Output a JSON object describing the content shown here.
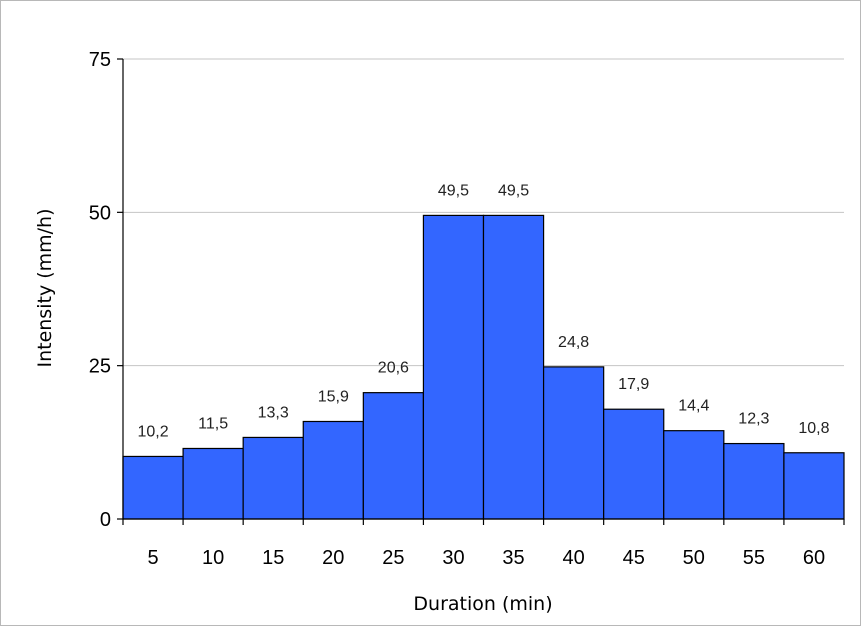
{
  "chart_data": {
    "type": "bar",
    "title": "",
    "xlabel": "Duration (min)",
    "ylabel": "Intensity (mm/h)",
    "categories": [
      "5",
      "10",
      "15",
      "20",
      "25",
      "30",
      "35",
      "40",
      "45",
      "50",
      "55",
      "60"
    ],
    "values": [
      10.2,
      11.5,
      13.3,
      15.9,
      20.6,
      49.5,
      49.5,
      24.8,
      17.9,
      14.4,
      12.3,
      10.8
    ],
    "data_labels": [
      "10,2",
      "11,5",
      "13,3",
      "15,9",
      "20,6",
      "49,5",
      "49,5",
      "24,8",
      "17,9",
      "14,4",
      "12,3",
      "10,8"
    ],
    "ylim": [
      0,
      75
    ],
    "yticks": [
      0,
      25,
      50,
      75
    ],
    "grid": true,
    "bar_color": "#3366ff",
    "legend": "none"
  }
}
